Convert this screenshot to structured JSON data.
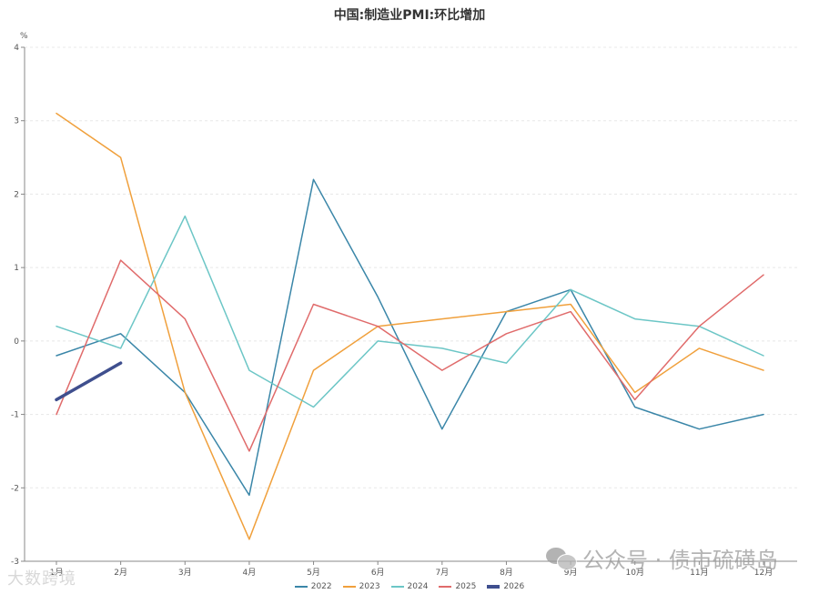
{
  "chart_data": {
    "type": "line",
    "title": "中国:制造业PMI:环比增加",
    "xlabel": "",
    "ylabel": "%",
    "ylim": [
      -3,
      4
    ],
    "yticks": [
      4,
      3,
      2,
      1,
      0,
      -1,
      -2,
      -3
    ],
    "grid": true,
    "legend_position": "bottom",
    "categories": [
      "1月",
      "2月",
      "3月",
      "4月",
      "5月",
      "6月",
      "7月",
      "8月",
      "9月",
      "10月",
      "11月",
      "12月"
    ],
    "series": [
      {
        "name": "2022",
        "color": "#3a86a8",
        "width": 1.5,
        "values": [
          -0.2,
          0.1,
          -0.7,
          -2.1,
          2.2,
          0.6,
          -1.2,
          0.4,
          0.7,
          -0.9,
          -1.2,
          -1.0
        ]
      },
      {
        "name": "2023",
        "color": "#f0a03c",
        "width": 1.5,
        "values": [
          3.1,
          2.5,
          -0.7,
          -2.7,
          -0.4,
          0.2,
          0.3,
          0.4,
          0.5,
          -0.7,
          -0.1,
          -0.4
        ]
      },
      {
        "name": "2024",
        "color": "#6cc6c6",
        "width": 1.5,
        "values": [
          0.2,
          -0.1,
          1.7,
          -0.4,
          -0.9,
          0.0,
          -0.1,
          -0.3,
          0.7,
          0.3,
          0.2,
          -0.2
        ]
      },
      {
        "name": "2025",
        "color": "#e06b6b",
        "width": 1.5,
        "values": [
          -1.0,
          1.1,
          0.3,
          -1.5,
          0.5,
          0.2,
          -0.4,
          0.1,
          0.4,
          -0.8,
          0.2,
          0.9
        ]
      },
      {
        "name": "2026",
        "color": "#3f4f8e",
        "width": 3.5,
        "values": [
          -0.8,
          -0.3
        ]
      }
    ]
  },
  "watermarks": {
    "left": "大数跨境",
    "right": "公众号 · 债市硫磺岛"
  }
}
